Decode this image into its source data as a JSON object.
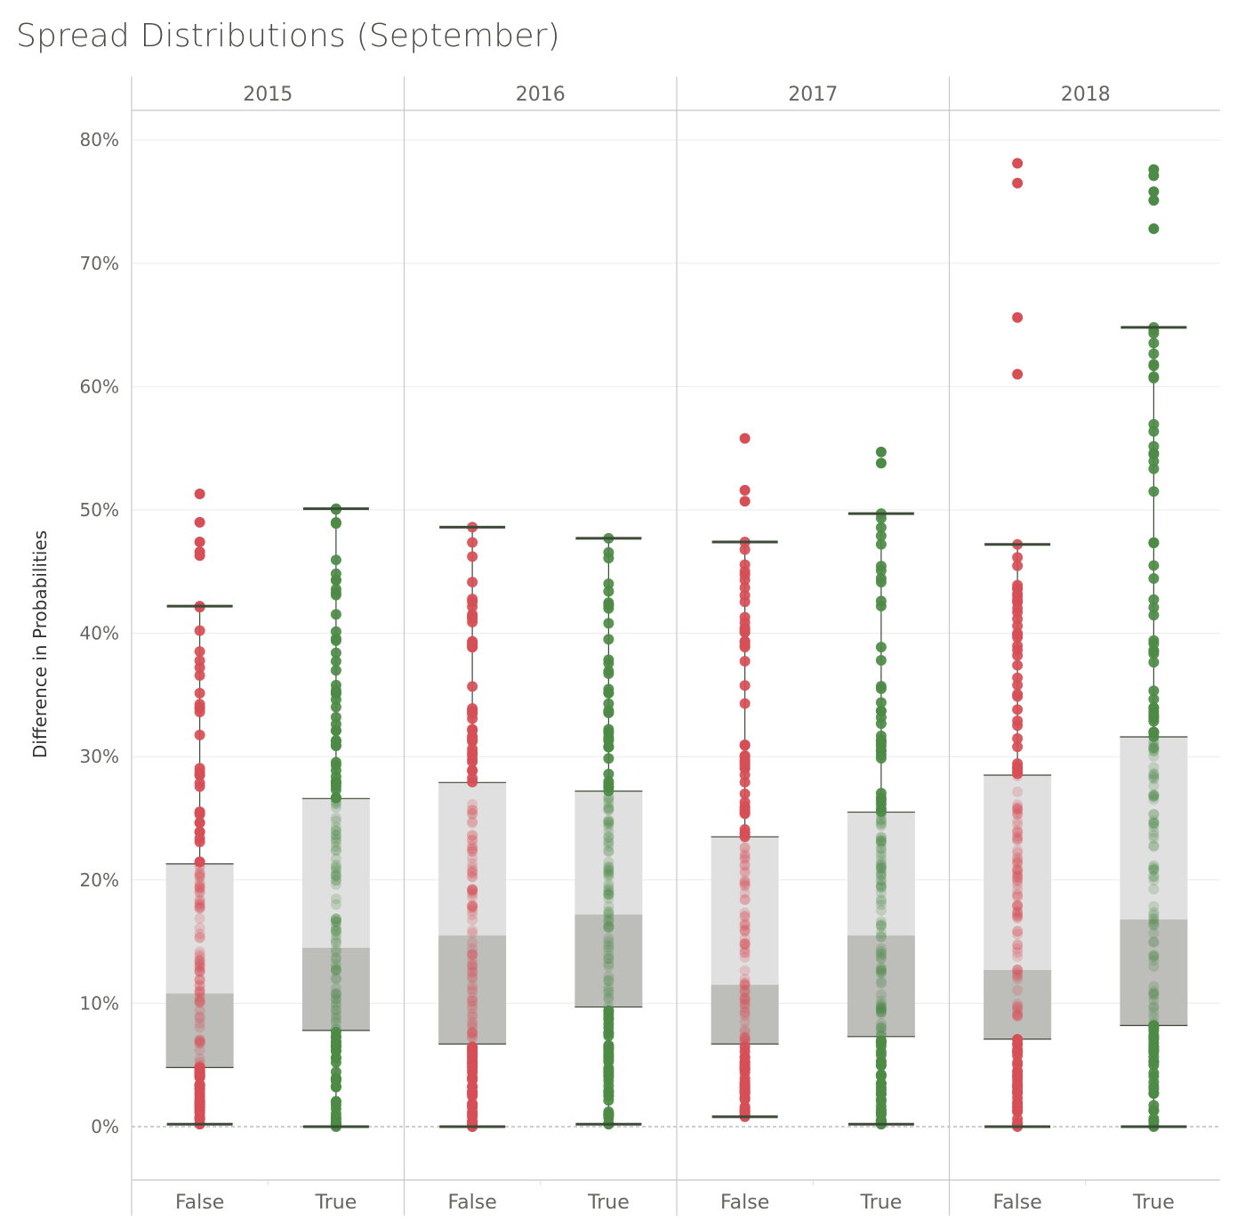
{
  "chart_data": {
    "type": "box",
    "title": "Spread Distributions (September)",
    "ylabel": "Difference in Probabilities",
    "ylim": [
      -0.04,
      0.83
    ],
    "yticks": [
      "0%",
      "10%",
      "20%",
      "30%",
      "40%",
      "50%",
      "60%",
      "70%",
      "80%"
    ],
    "years": [
      "2015",
      "2016",
      "2017",
      "2018"
    ],
    "categories": [
      "False",
      "True"
    ],
    "colors": {
      "False": "#d64e56",
      "True": "#4d8a47",
      "box_upper": "#e0e0e0",
      "box_lower": "#bdbdb9",
      "whisker": "#3d4a38"
    },
    "groups": [
      {
        "year": "2015",
        "category": "False",
        "min": 0.002,
        "q1": 0.048,
        "median": 0.108,
        "q3": 0.213,
        "max": 0.422,
        "outliers": [
          0.463,
          0.466,
          0.474,
          0.49,
          0.513
        ]
      },
      {
        "year": "2015",
        "category": "True",
        "min": 0.0,
        "q1": 0.078,
        "median": 0.145,
        "q3": 0.266,
        "max": 0.501,
        "outliers": []
      },
      {
        "year": "2016",
        "category": "False",
        "min": 0.0,
        "q1": 0.067,
        "median": 0.155,
        "q3": 0.279,
        "max": 0.486,
        "outliers": []
      },
      {
        "year": "2016",
        "category": "True",
        "min": 0.002,
        "q1": 0.097,
        "median": 0.172,
        "q3": 0.272,
        "max": 0.477,
        "outliers": []
      },
      {
        "year": "2017",
        "category": "False",
        "min": 0.008,
        "q1": 0.067,
        "median": 0.115,
        "q3": 0.235,
        "max": 0.474,
        "outliers": [
          0.507,
          0.516,
          0.558
        ]
      },
      {
        "year": "2017",
        "category": "True",
        "min": 0.002,
        "q1": 0.073,
        "median": 0.155,
        "q3": 0.255,
        "max": 0.497,
        "outliers": [
          0.538,
          0.547
        ]
      },
      {
        "year": "2018",
        "category": "False",
        "min": 0.0,
        "q1": 0.071,
        "median": 0.127,
        "q3": 0.285,
        "max": 0.472,
        "outliers": [
          0.61,
          0.656,
          0.765,
          0.781
        ]
      },
      {
        "year": "2018",
        "category": "True",
        "min": 0.0,
        "q1": 0.082,
        "median": 0.168,
        "q3": 0.316,
        "max": 0.648,
        "outliers": [
          0.728,
          0.751,
          0.758,
          0.771,
          0.776
        ]
      }
    ],
    "grid": true,
    "zero_line": "dashed"
  }
}
